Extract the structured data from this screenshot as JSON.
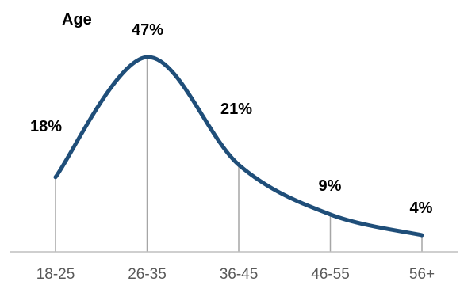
{
  "chart_data": {
    "type": "line",
    "title": "Age",
    "categories": [
      "18-25",
      "26-35",
      "36-45",
      "46-55",
      "56+"
    ],
    "values": [
      18,
      47,
      21,
      9,
      4
    ],
    "data_labels": [
      "18%",
      "47%",
      "21%",
      "9%",
      "4%"
    ],
    "smooth": true,
    "drop_lines": true,
    "ylim": [
      0,
      50
    ],
    "grid": false,
    "legend": "none",
    "colors": {
      "line": "#1F4E79",
      "drop_line": "#A6A6A6",
      "axis": "#BFBFBF",
      "tick_text": "#595959",
      "label_text": "#000000"
    }
  }
}
